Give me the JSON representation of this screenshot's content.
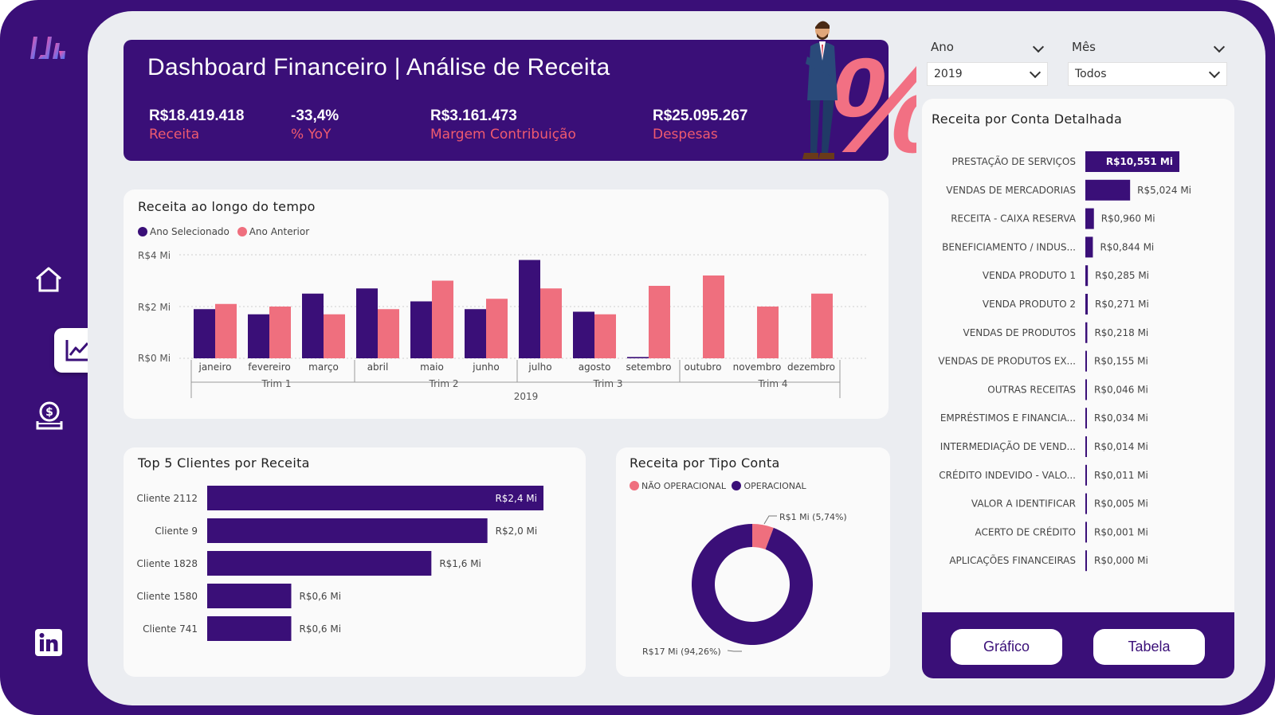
{
  "header": {
    "title": "Dashboard Financeiro | Análise de Receita",
    "kpis": [
      {
        "value": "R$18.419.418",
        "label": "Receita"
      },
      {
        "value": "-33,4%",
        "label": "% YoY"
      },
      {
        "value": "R$3.161.473",
        "label": "Margem Contribuição"
      },
      {
        "value": "R$25.095.267",
        "label": "Despesas"
      }
    ]
  },
  "filters": {
    "ano": {
      "label": "Ano",
      "value": "2019"
    },
    "mes": {
      "label": "Mês",
      "value": "Todos"
    }
  },
  "colors": {
    "primary": "#3a0f78",
    "secondary": "#ef6f7e",
    "canvas": "#ebedf1"
  },
  "sidebar": {
    "icons": [
      "logo-icon",
      "home-icon",
      "line-chart-icon",
      "money-icon",
      "linkedin-icon"
    ]
  },
  "revenue_time": {
    "title": "Receita ao longo do tempo",
    "legend": [
      "Ano Selecionado",
      "Ano Anterior"
    ],
    "y_ticks": [
      "R$4 Mi",
      "R$2 Mi",
      "R$0 Mi"
    ],
    "quarters": [
      "Trim 1",
      "Trim 2",
      "Trim 3",
      "Trim 4"
    ],
    "year": "2019"
  },
  "top_clients": {
    "title": "Top 5 Clientes por Receita"
  },
  "tipo_conta": {
    "title": "Receita por Tipo Conta",
    "legend": [
      "NÃO OPERACIONAL",
      "OPERACIONAL"
    ],
    "label_small": "R$1 Mi (5,74%)",
    "label_big": "R$17 Mi (94,26%)"
  },
  "conta_detalhada": {
    "title": "Receita por Conta Detalhada"
  },
  "buttons": {
    "grafico": "Gráfico",
    "tabela": "Tabela"
  },
  "chart_data": [
    {
      "type": "bar",
      "title": "Receita ao longo do tempo",
      "categories": [
        "janeiro",
        "fevereiro",
        "março",
        "abril",
        "maio",
        "junho",
        "julho",
        "agosto",
        "setembro",
        "outubro",
        "novembro",
        "dezembro"
      ],
      "series": [
        {
          "name": "Ano Selecionado",
          "values": [
            1.9,
            1.7,
            2.5,
            2.7,
            2.2,
            1.9,
            3.8,
            1.8,
            0.05,
            0,
            0,
            0
          ]
        },
        {
          "name": "Ano Anterior",
          "values": [
            2.1,
            2.0,
            1.7,
            1.9,
            3.0,
            2.3,
            2.7,
            1.7,
            2.8,
            3.2,
            2.0,
            2.5
          ]
        }
      ],
      "ylim": [
        0,
        4
      ],
      "ylabel": "",
      "xlabel": "2019"
    },
    {
      "type": "bar",
      "title": "Top 5 Clientes por Receita",
      "categories": [
        "Cliente 2112",
        "Cliente 9",
        "Cliente 1828",
        "Cliente 1580",
        "Cliente 741"
      ],
      "values": [
        2.4,
        2.0,
        1.6,
        0.6,
        0.6
      ],
      "labels": [
        "R$2,4 Mi",
        "R$2,0 Mi",
        "R$1,6 Mi",
        "R$0,6 Mi",
        "R$0,6 Mi"
      ],
      "xlim": [
        0,
        2.4
      ]
    },
    {
      "type": "pie",
      "title": "Receita por Tipo Conta",
      "categories": [
        "NÃO OPERACIONAL",
        "OPERACIONAL"
      ],
      "values": [
        5.74,
        94.26
      ]
    },
    {
      "type": "bar",
      "title": "Receita por Conta Detalhada",
      "categories": [
        "PRESTAÇÃO DE SERVIÇOS",
        "VENDAS DE MERCADORIAS",
        "RECEITA - CAIXA RESERVA",
        "BENEFICIAMENTO / INDUS...",
        "VENDA PRODUTO 1",
        "VENDA PRODUTO 2",
        "VENDAS DE PRODUTOS",
        "VENDAS DE PRODUTOS EX...",
        "OUTRAS RECEITAS",
        "EMPRÉSTIMOS E FINANCIA...",
        "INTERMEDIAÇÃO DE VEND...",
        "CRÉDITO INDEVIDO - VALO...",
        "VALOR A IDENTIFICAR",
        "ACERTO DE CRÉDITO",
        "APLICAÇÕES FINANCEIRAS"
      ],
      "values": [
        10.551,
        5.024,
        0.96,
        0.844,
        0.285,
        0.271,
        0.218,
        0.155,
        0.046,
        0.034,
        0.014,
        0.011,
        0.005,
        0.001,
        0.0
      ],
      "labels": [
        "R$10,551 Mi",
        "R$5,024 Mi",
        "R$0,960 Mi",
        "R$0,844 Mi",
        "R$0,285 Mi",
        "R$0,271 Mi",
        "R$0,218 Mi",
        "R$0,155 Mi",
        "R$0,046 Mi",
        "R$0,034 Mi",
        "R$0,014 Mi",
        "R$0,011 Mi",
        "R$0,005 Mi",
        "R$0,001 Mi",
        "R$0,000 Mi"
      ],
      "xlim": [
        0,
        10.551
      ]
    }
  ]
}
